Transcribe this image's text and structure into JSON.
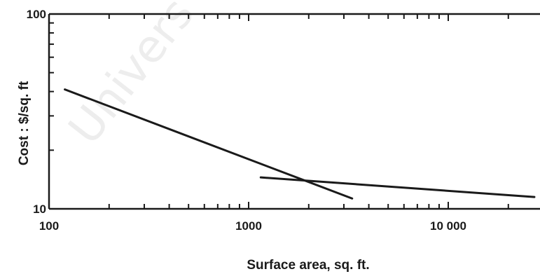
{
  "chart_data": {
    "type": "line",
    "xscale": "log",
    "yscale": "log",
    "xlim": [
      100,
      27000
    ],
    "ylim": [
      10,
      100
    ],
    "xlabel": "Surface area, sq. ft.",
    "ylabel": "Cost : $/sq. ft",
    "xticks": [
      "100",
      "1000",
      "10 000"
    ],
    "yticks": [
      "10",
      "100"
    ],
    "series": [
      {
        "x": [
          120,
          3300
        ],
        "y": [
          41,
          11.3
        ]
      },
      {
        "x": [
          1150,
          27000
        ],
        "y": [
          14.5,
          11.5
        ]
      }
    ],
    "watermark": "Univers"
  }
}
